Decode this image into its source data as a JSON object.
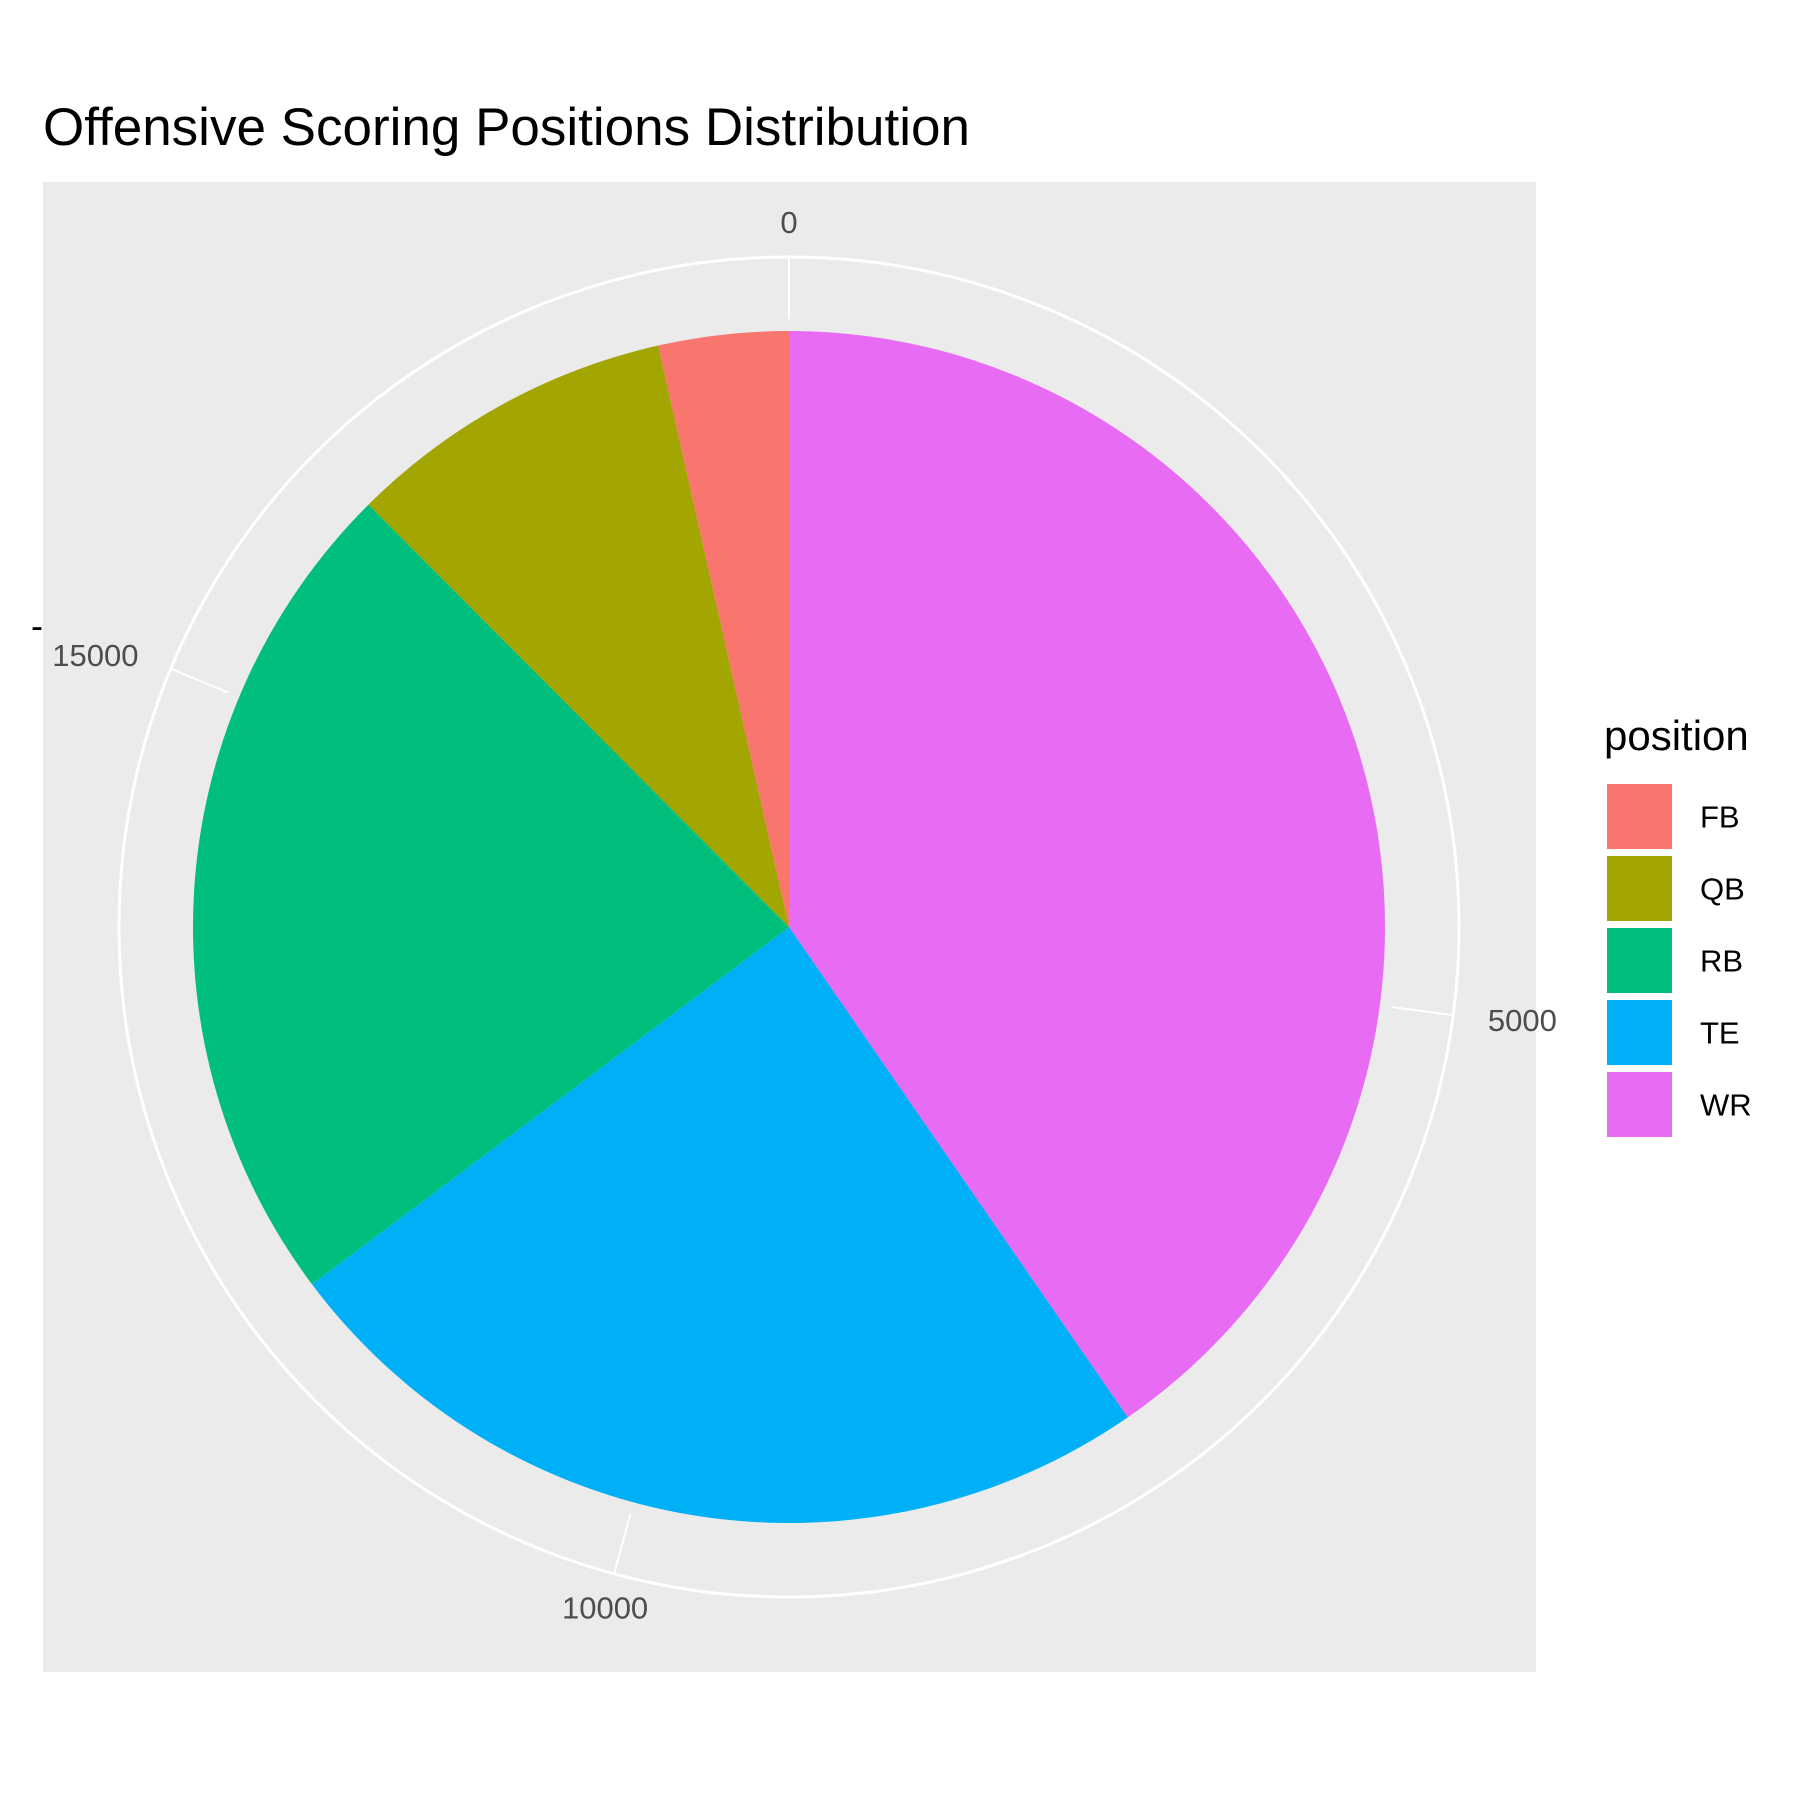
{
  "chart_data": {
    "type": "pie",
    "title": "Offensive Scoring Positions Distribution",
    "y_axis_label": "-",
    "radial_axis": {
      "ticks": [
        0,
        5000,
        10000,
        15000
      ],
      "tick_labels": [
        "0",
        "5000",
        "10000",
        "15000"
      ],
      "range": [
        0,
        18450
      ]
    },
    "categories": [
      "FB",
      "QB",
      "RB",
      "TE",
      "WR"
    ],
    "values": [
      650,
      1650,
      4200,
      4500,
      7450
    ],
    "slice_order_clockwise_from_top": [
      "WR",
      "TE",
      "RB",
      "QB",
      "FB"
    ],
    "colors": {
      "FB": "#F8766D",
      "QB": "#A3A500",
      "RB": "#00BF7D",
      "TE": "#00B0F6",
      "WR": "#E76BF3"
    },
    "panel_background": "#EBEBEB",
    "grid": true,
    "grid_color": "#FFFFFF",
    "legend": {
      "title": "position",
      "placement": "right",
      "entries": [
        "FB",
        "QB",
        "RB",
        "TE",
        "WR"
      ]
    }
  }
}
